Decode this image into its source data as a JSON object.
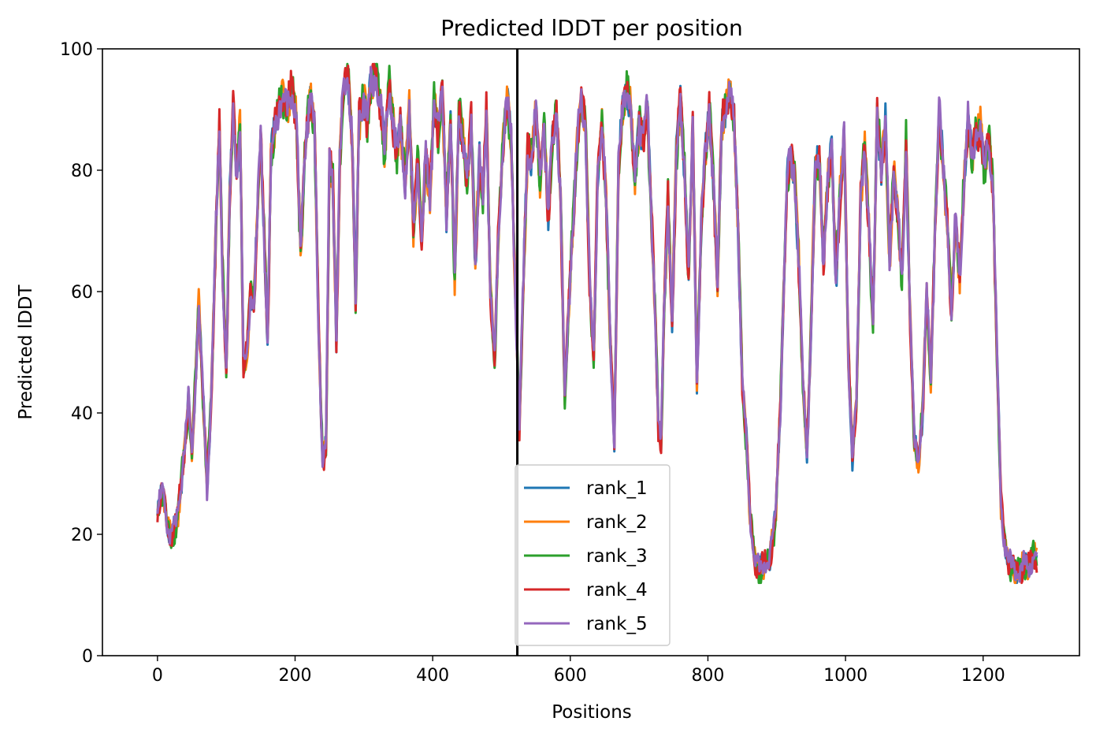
{
  "chart_data": {
    "type": "line",
    "title": "Predicted lDDT per position",
    "xlabel": "Positions",
    "ylabel": "Predicted lDDT",
    "xlim": [
      -80,
      1340
    ],
    "ylim": [
      0,
      100
    ],
    "xticks": [
      0,
      200,
      400,
      600,
      800,
      1000,
      1200
    ],
    "yticks": [
      0,
      20,
      40,
      60,
      80,
      100
    ],
    "grid": false,
    "legend_position": "lower-center",
    "chain_boundary": 523,
    "series": [
      {
        "name": "rank_1",
        "color": "#1f77b4"
      },
      {
        "name": "rank_2",
        "color": "#ff7f0e"
      },
      {
        "name": "rank_3",
        "color": "#2ca02c"
      },
      {
        "name": "rank_4",
        "color": "#d62728"
      },
      {
        "name": "rank_5",
        "color": "#9467bd"
      }
    ],
    "profile": [
      [
        0,
        24
      ],
      [
        8,
        27
      ],
      [
        14,
        22
      ],
      [
        20,
        19
      ],
      [
        28,
        22
      ],
      [
        34,
        28
      ],
      [
        40,
        35
      ],
      [
        45,
        42
      ],
      [
        50,
        33
      ],
      [
        55,
        45
      ],
      [
        60,
        58
      ],
      [
        65,
        45
      ],
      [
        72,
        28
      ],
      [
        78,
        42
      ],
      [
        85,
        70
      ],
      [
        90,
        87
      ],
      [
        95,
        62
      ],
      [
        100,
        47
      ],
      [
        105,
        75
      ],
      [
        110,
        90
      ],
      [
        115,
        80
      ],
      [
        120,
        88
      ],
      [
        125,
        47
      ],
      [
        130,
        50
      ],
      [
        135,
        60
      ],
      [
        140,
        58
      ],
      [
        145,
        72
      ],
      [
        150,
        85
      ],
      [
        155,
        70
      ],
      [
        160,
        52
      ],
      [
        165,
        82
      ],
      [
        172,
        88
      ],
      [
        180,
        92
      ],
      [
        188,
        90
      ],
      [
        195,
        94
      ],
      [
        202,
        88
      ],
      [
        208,
        66
      ],
      [
        215,
        85
      ],
      [
        222,
        92
      ],
      [
        228,
        88
      ],
      [
        234,
        55
      ],
      [
        240,
        32
      ],
      [
        245,
        35
      ],
      [
        250,
        82
      ],
      [
        255,
        78
      ],
      [
        260,
        52
      ],
      [
        265,
        82
      ],
      [
        270,
        93
      ],
      [
        277,
        96
      ],
      [
        283,
        85
      ],
      [
        288,
        58
      ],
      [
        293,
        88
      ],
      [
        300,
        92
      ],
      [
        305,
        87
      ],
      [
        310,
        94
      ],
      [
        318,
        96
      ],
      [
        325,
        90
      ],
      [
        330,
        83
      ],
      [
        337,
        95
      ],
      [
        343,
        87
      ],
      [
        348,
        82
      ],
      [
        353,
        88
      ],
      [
        360,
        78
      ],
      [
        366,
        90
      ],
      [
        372,
        70
      ],
      [
        378,
        82
      ],
      [
        384,
        68
      ],
      [
        390,
        83
      ],
      [
        396,
        75
      ],
      [
        402,
        92
      ],
      [
        408,
        85
      ],
      [
        414,
        93
      ],
      [
        420,
        73
      ],
      [
        426,
        88
      ],
      [
        432,
        62
      ],
      [
        438,
        90
      ],
      [
        444,
        85
      ],
      [
        450,
        78
      ],
      [
        456,
        88
      ],
      [
        462,
        65
      ],
      [
        468,
        82
      ],
      [
        473,
        75
      ],
      [
        478,
        90
      ],
      [
        484,
        60
      ],
      [
        490,
        48
      ],
      [
        496,
        72
      ],
      [
        502,
        84
      ],
      [
        508,
        92
      ],
      [
        514,
        85
      ],
      [
        520,
        60
      ],
      [
        526,
        38
      ],
      [
        532,
        62
      ],
      [
        538,
        84
      ],
      [
        544,
        82
      ],
      [
        550,
        90
      ],
      [
        556,
        78
      ],
      [
        562,
        88
      ],
      [
        568,
        72
      ],
      [
        574,
        85
      ],
      [
        580,
        90
      ],
      [
        586,
        75
      ],
      [
        592,
        42
      ],
      [
        598,
        58
      ],
      [
        604,
        72
      ],
      [
        610,
        84
      ],
      [
        616,
        92
      ],
      [
        622,
        88
      ],
      [
        628,
        62
      ],
      [
        634,
        48
      ],
      [
        640,
        80
      ],
      [
        646,
        88
      ],
      [
        652,
        75
      ],
      [
        658,
        52
      ],
      [
        664,
        36
      ],
      [
        670,
        80
      ],
      [
        676,
        90
      ],
      [
        682,
        94
      ],
      [
        688,
        90
      ],
      [
        694,
        78
      ],
      [
        700,
        88
      ],
      [
        706,
        85
      ],
      [
        712,
        90
      ],
      [
        718,
        72
      ],
      [
        724,
        55
      ],
      [
        728,
        38
      ],
      [
        732,
        35
      ],
      [
        736,
        55
      ],
      [
        742,
        76
      ],
      [
        748,
        55
      ],
      [
        754,
        82
      ],
      [
        760,
        92
      ],
      [
        766,
        80
      ],
      [
        772,
        62
      ],
      [
        778,
        88
      ],
      [
        784,
        45
      ],
      [
        790,
        70
      ],
      [
        796,
        82
      ],
      [
        802,
        90
      ],
      [
        808,
        78
      ],
      [
        814,
        60
      ],
      [
        820,
        88
      ],
      [
        826,
        90
      ],
      [
        832,
        93
      ],
      [
        838,
        88
      ],
      [
        844,
        70
      ],
      [
        850,
        45
      ],
      [
        856,
        35
      ],
      [
        862,
        22
      ],
      [
        868,
        16
      ],
      [
        875,
        14
      ],
      [
        882,
        15
      ],
      [
        890,
        16
      ],
      [
        898,
        22
      ],
      [
        905,
        40
      ],
      [
        910,
        60
      ],
      [
        915,
        78
      ],
      [
        920,
        82
      ],
      [
        926,
        80
      ],
      [
        932,
        65
      ],
      [
        938,
        45
      ],
      [
        944,
        33
      ],
      [
        950,
        55
      ],
      [
        956,
        80
      ],
      [
        962,
        82
      ],
      [
        968,
        65
      ],
      [
        974,
        78
      ],
      [
        980,
        83
      ],
      [
        986,
        62
      ],
      [
        992,
        76
      ],
      [
        998,
        85
      ],
      [
        1004,
        50
      ],
      [
        1010,
        33
      ],
      [
        1016,
        42
      ],
      [
        1022,
        75
      ],
      [
        1028,
        85
      ],
      [
        1034,
        70
      ],
      [
        1040,
        55
      ],
      [
        1046,
        90
      ],
      [
        1052,
        80
      ],
      [
        1058,
        88
      ],
      [
        1064,
        65
      ],
      [
        1070,
        80
      ],
      [
        1076,
        72
      ],
      [
        1082,
        62
      ],
      [
        1088,
        85
      ],
      [
        1094,
        55
      ],
      [
        1100,
        35
      ],
      [
        1106,
        32
      ],
      [
        1112,
        40
      ],
      [
        1118,
        60
      ],
      [
        1124,
        45
      ],
      [
        1130,
        70
      ],
      [
        1136,
        90
      ],
      [
        1142,
        80
      ],
      [
        1148,
        72
      ],
      [
        1154,
        56
      ],
      [
        1160,
        72
      ],
      [
        1166,
        62
      ],
      [
        1172,
        78
      ],
      [
        1178,
        88
      ],
      [
        1184,
        82
      ],
      [
        1190,
        86
      ],
      [
        1196,
        87
      ],
      [
        1202,
        80
      ],
      [
        1208,
        86
      ],
      [
        1214,
        78
      ],
      [
        1220,
        50
      ],
      [
        1226,
        25
      ],
      [
        1232,
        18
      ],
      [
        1238,
        15
      ],
      [
        1245,
        14
      ],
      [
        1252,
        14
      ],
      [
        1260,
        15
      ],
      [
        1268,
        15
      ],
      [
        1274,
        17
      ],
      [
        1278,
        16
      ]
    ]
  }
}
